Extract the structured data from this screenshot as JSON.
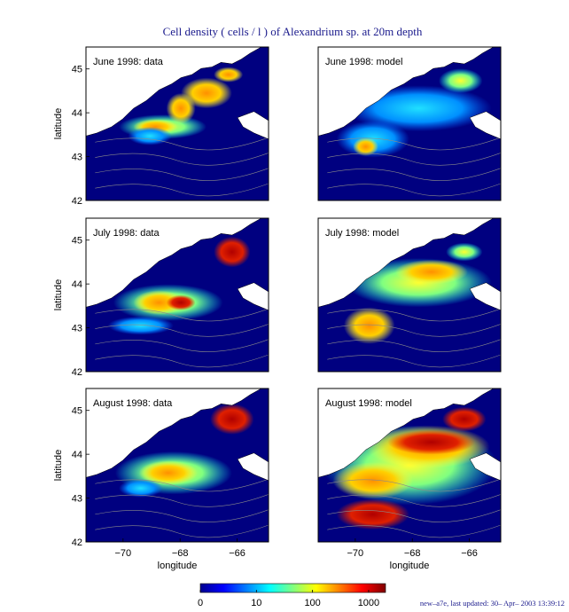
{
  "figure": {
    "title": "Cell density ( cells / l ) of Alexandrium sp. at 20m depth",
    "footer": "new–a7e, last updated: 30– Apr– 2003 13:39:12",
    "colors": {
      "title": "#1a1a8c",
      "footer": "#1a1a8c",
      "ocean": "#000080",
      "land": "#ffffff",
      "frame": "#000000"
    }
  },
  "chart_data": [
    {
      "type": "heatmap",
      "panel_title": "June 1998: data",
      "xlabel": "",
      "ylabel": "latitude",
      "xlim": [
        -71.3,
        -64.9
      ],
      "ylim": [
        42,
        45.5
      ],
      "x_ticks": [],
      "y_ticks": [
        42,
        43,
        44,
        45
      ]
    },
    {
      "type": "heatmap",
      "panel_title": "June 1998: model",
      "xlabel": "",
      "ylabel": "",
      "xlim": [
        -71.3,
        -64.9
      ],
      "ylim": [
        42,
        45.5
      ],
      "x_ticks": [],
      "y_ticks": []
    },
    {
      "type": "heatmap",
      "panel_title": "July 1998: data",
      "xlabel": "",
      "ylabel": "latitude",
      "xlim": [
        -71.3,
        -64.9
      ],
      "ylim": [
        42,
        45.5
      ],
      "x_ticks": [],
      "y_ticks": [
        42,
        43,
        44,
        45
      ]
    },
    {
      "type": "heatmap",
      "panel_title": "July 1998: model",
      "xlabel": "",
      "ylabel": "",
      "xlim": [
        -71.3,
        -64.9
      ],
      "ylim": [
        42,
        45.5
      ],
      "x_ticks": [],
      "y_ticks": []
    },
    {
      "type": "heatmap",
      "panel_title": "August 1998: data",
      "xlabel": "longitude",
      "ylabel": "latitude",
      "xlim": [
        -71.3,
        -64.9
      ],
      "ylim": [
        42,
        45.5
      ],
      "x_ticks": [
        -70,
        -68,
        -66
      ],
      "y_ticks": [
        42,
        43,
        44,
        45
      ]
    },
    {
      "type": "heatmap",
      "panel_title": "August 1998: model",
      "xlabel": "longitude",
      "ylabel": "",
      "xlim": [
        -71.3,
        -64.9
      ],
      "ylim": [
        42,
        45.5
      ],
      "x_ticks": [
        -70,
        -68,
        -66
      ],
      "y_ticks": []
    }
  ],
  "colorbar": {
    "scale": "log",
    "range": [
      1,
      2000
    ],
    "ticks": [
      {
        "value": 1,
        "label": "0"
      },
      {
        "value": 10,
        "label": "10"
      },
      {
        "value": 100,
        "label": "100"
      },
      {
        "value": 1000,
        "label": "1000"
      }
    ],
    "colormap": [
      "#00008f",
      "#0000ff",
      "#0080ff",
      "#00ffff",
      "#80ff80",
      "#ffff00",
      "#ff8000",
      "#ff0000",
      "#800000"
    ]
  }
}
